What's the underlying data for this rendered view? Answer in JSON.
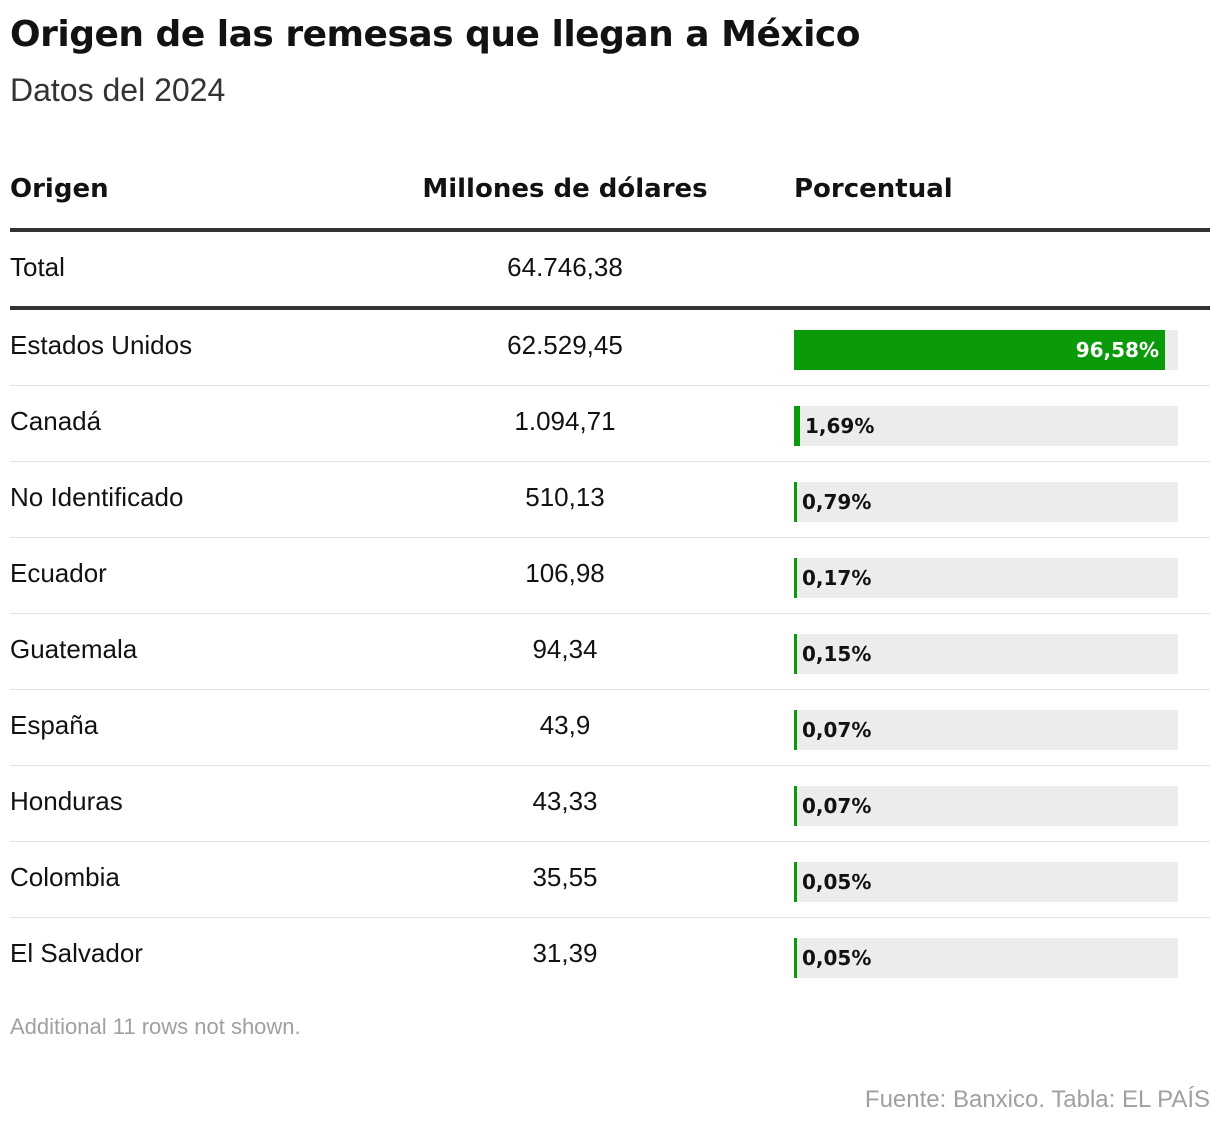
{
  "title": "Origen de las remesas que llegan a México",
  "subtitle": "Datos del 2024",
  "headers": {
    "origin": "Origen",
    "millones": "Millones de dólares",
    "porcentual": "Porcentual"
  },
  "total": {
    "origin": "Total",
    "value": "64.746,38"
  },
  "accent_color": "#0a9a0a",
  "note": "Additional 11 rows not shown.",
  "source": "Fuente: Banxico. Tabla: EL PAÍS",
  "chart_data": {
    "type": "table",
    "columns": [
      "Origen",
      "Millones de dólares",
      "Porcentual"
    ],
    "rows": [
      {
        "origin": "Estados Unidos",
        "value": "62.529,45",
        "pct": 96.58,
        "pct_label": "96,58%"
      },
      {
        "origin": "Canadá",
        "value": "1.094,71",
        "pct": 1.69,
        "pct_label": "1,69%"
      },
      {
        "origin": "No Identificado",
        "value": "510,13",
        "pct": 0.79,
        "pct_label": "0,79%"
      },
      {
        "origin": "Ecuador",
        "value": "106,98",
        "pct": 0.17,
        "pct_label": "0,17%"
      },
      {
        "origin": "Guatemala",
        "value": "94,34",
        "pct": 0.15,
        "pct_label": "0,15%"
      },
      {
        "origin": "España",
        "value": "43,9",
        "pct": 0.07,
        "pct_label": "0,07%"
      },
      {
        "origin": "Honduras",
        "value": "43,33",
        "pct": 0.07,
        "pct_label": "0,07%"
      },
      {
        "origin": "Colombia",
        "value": "35,55",
        "pct": 0.05,
        "pct_label": "0,05%"
      },
      {
        "origin": "El Salvador",
        "value": "31,39",
        "pct": 0.05,
        "pct_label": "0,05%"
      }
    ]
  }
}
